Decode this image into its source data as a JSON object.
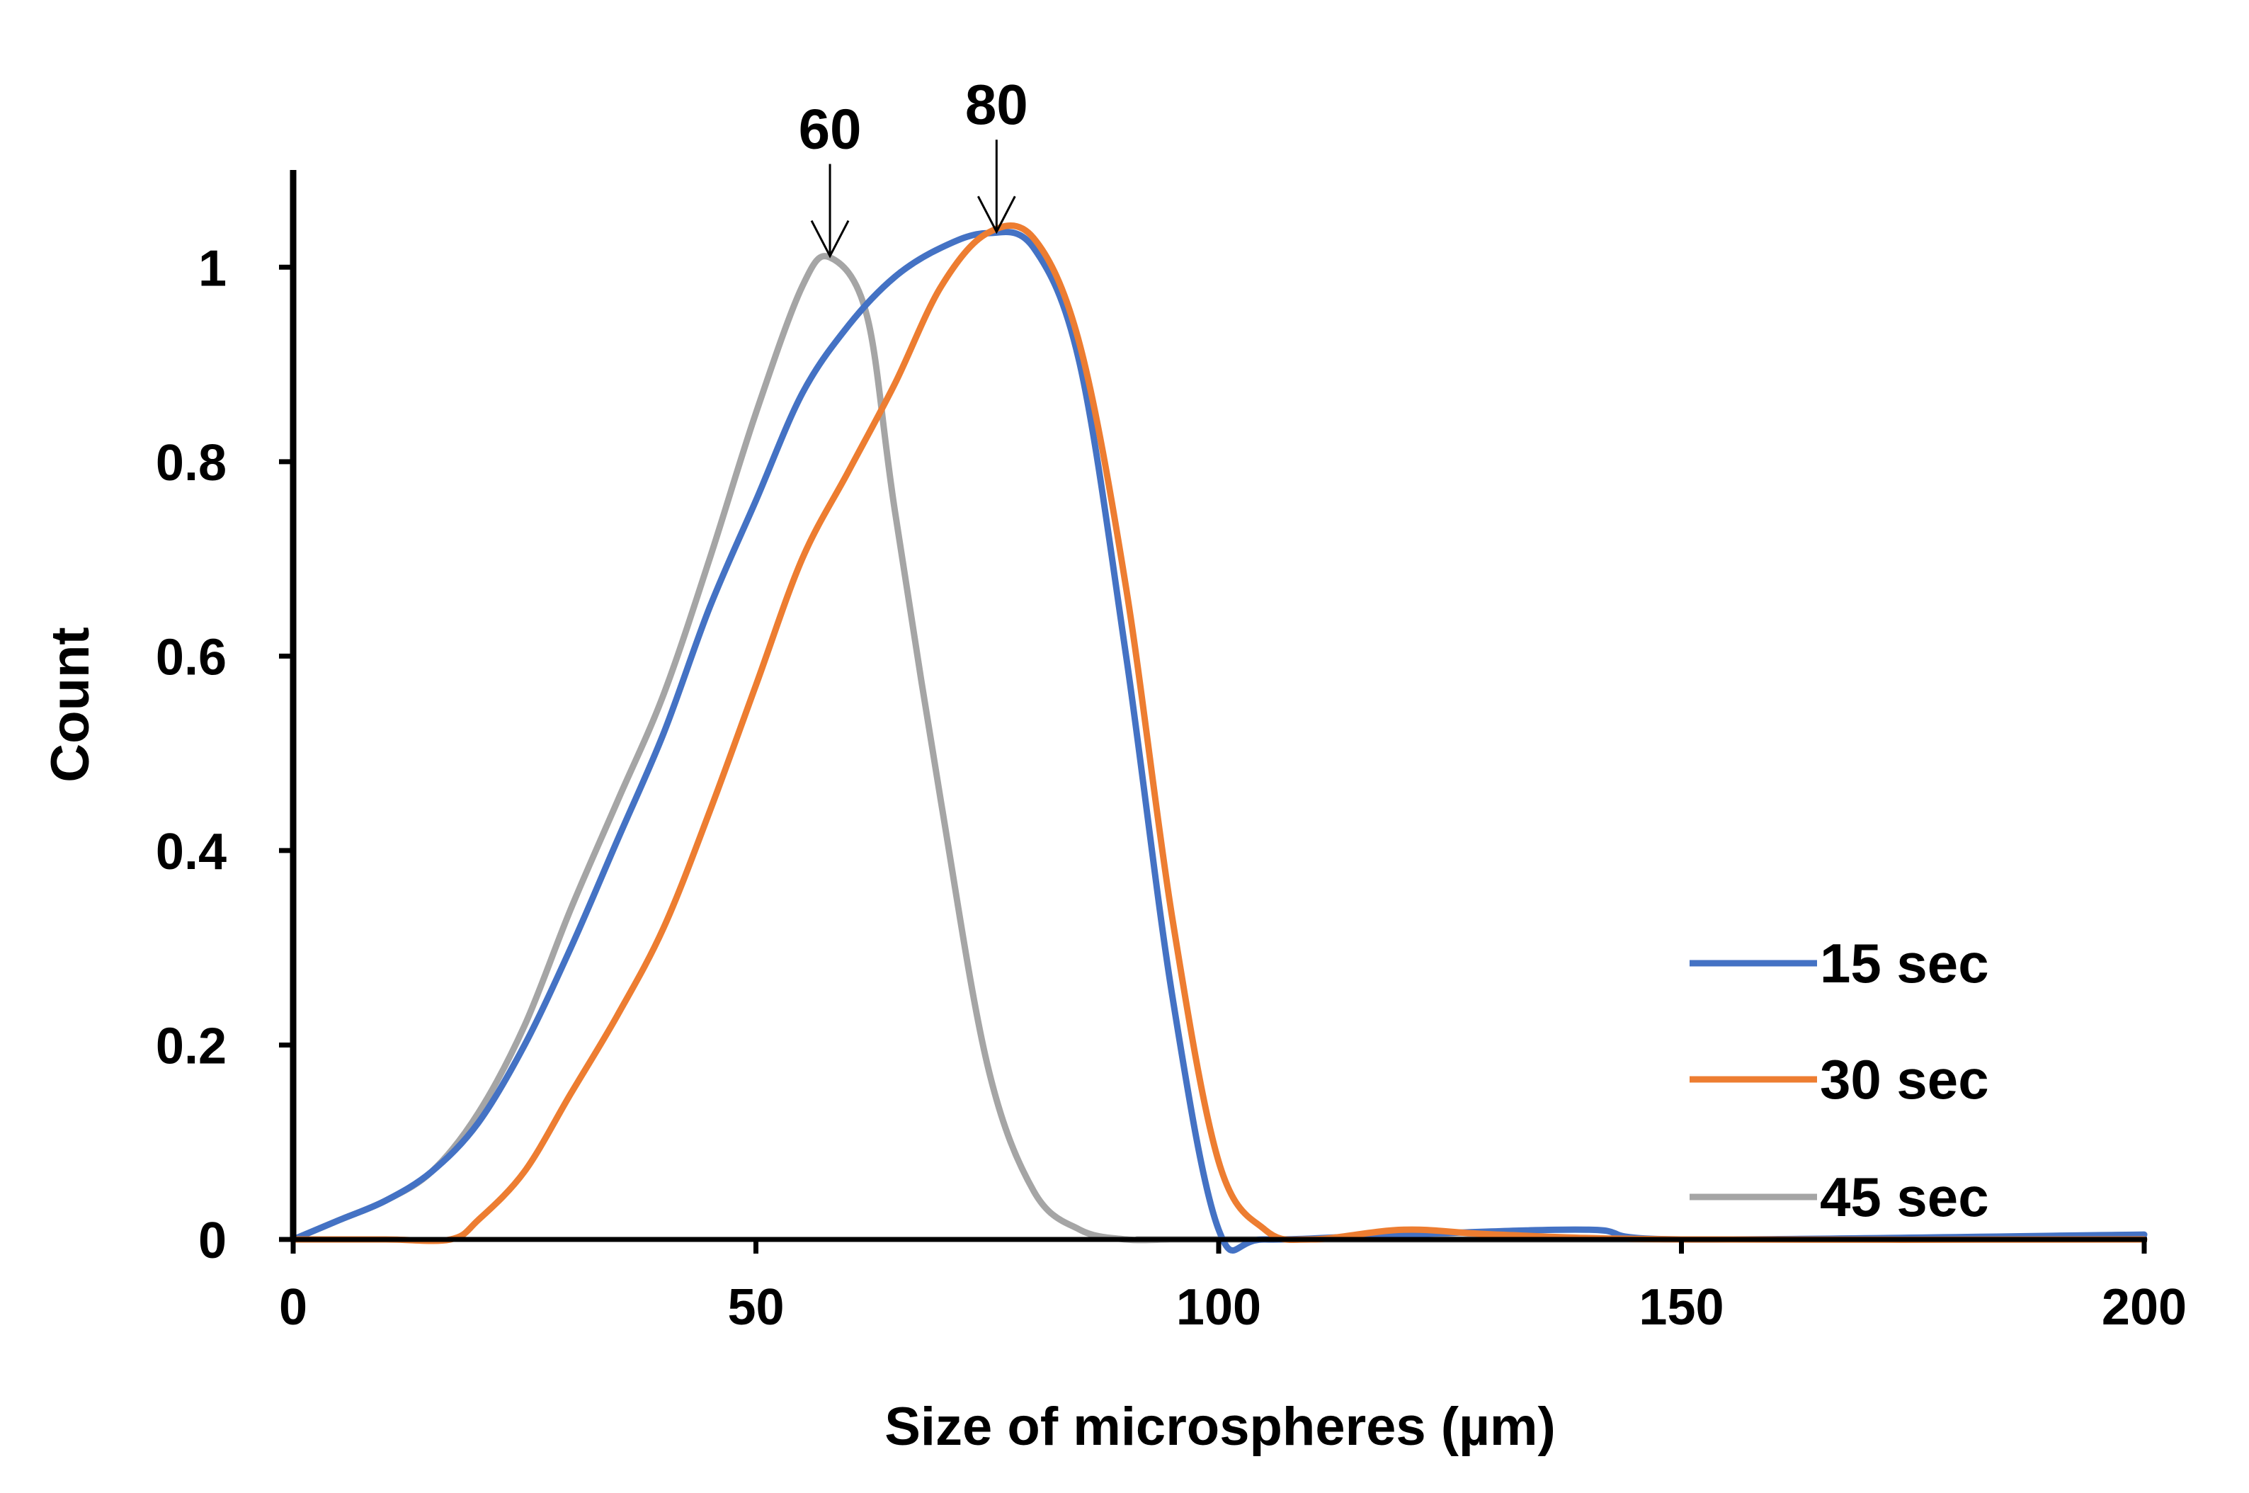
{
  "chart_data": {
    "type": "line",
    "title": "",
    "xlabel": "Size of microspheres (µm)",
    "ylabel": "Count",
    "xlim": [
      0,
      200
    ],
    "ylim": [
      0,
      1.1
    ],
    "xticks": [
      0,
      50,
      100,
      150,
      200
    ],
    "xtick_labels": [
      "0",
      "50",
      "100",
      "150",
      "200"
    ],
    "yticks": [
      0,
      0.2,
      0.4,
      0.6,
      0.8,
      1
    ],
    "ytick_labels": [
      "0",
      "0.2",
      "0.4",
      "0.6",
      "0.8",
      "1"
    ],
    "grid": false,
    "legend": "bottom-right",
    "series": [
      {
        "name": "15 sec",
        "color": "#4472C4",
        "x": [
          0,
          5,
          10,
          15,
          20,
          25,
          30,
          35,
          40,
          45,
          50,
          55,
          60,
          65,
          70,
          75,
          80,
          85,
          90,
          95,
          100,
          105,
          120,
          140,
          150,
          200
        ],
        "y": [
          0,
          0.02,
          0.04,
          0.07,
          0.12,
          0.2,
          0.3,
          0.41,
          0.52,
          0.65,
          0.76,
          0.87,
          0.94,
          0.99,
          1.02,
          1.035,
          1.02,
          0.9,
          0.6,
          0.25,
          0.01,
          0,
          0.005,
          0.01,
          0,
          0.005
        ]
      },
      {
        "name": "30 sec",
        "color": "#ED7D31",
        "x": [
          0,
          10,
          17,
          20,
          25,
          30,
          35,
          40,
          45,
          50,
          55,
          60,
          65,
          70,
          75,
          80,
          85,
          90,
          95,
          100,
          105,
          110,
          120,
          130,
          150,
          200
        ],
        "y": [
          0,
          0,
          0,
          0.02,
          0.07,
          0.15,
          0.23,
          0.32,
          0.44,
          0.57,
          0.7,
          0.79,
          0.88,
          0.98,
          1.035,
          1.03,
          0.92,
          0.67,
          0.33,
          0.08,
          0.01,
          0,
          0.01,
          0.005,
          0,
          0
        ]
      },
      {
        "name": "45 sec",
        "color": "#A5A5A5",
        "x": [
          0,
          5,
          10,
          15,
          20,
          25,
          30,
          35,
          40,
          45,
          50,
          55,
          58,
          62,
          65,
          70,
          75,
          80,
          85,
          90,
          95,
          100,
          200
        ],
        "y": [
          0,
          0.02,
          0.04,
          0.07,
          0.13,
          0.22,
          0.34,
          0.45,
          0.56,
          0.7,
          0.85,
          0.98,
          1.01,
          0.95,
          0.75,
          0.45,
          0.18,
          0.05,
          0.01,
          0,
          0,
          0,
          0
        ]
      }
    ],
    "annotations": [
      {
        "text": "60",
        "x": 58,
        "y": 1.01
      },
      {
        "text": "80",
        "x": 76,
        "y": 1.035
      }
    ]
  }
}
